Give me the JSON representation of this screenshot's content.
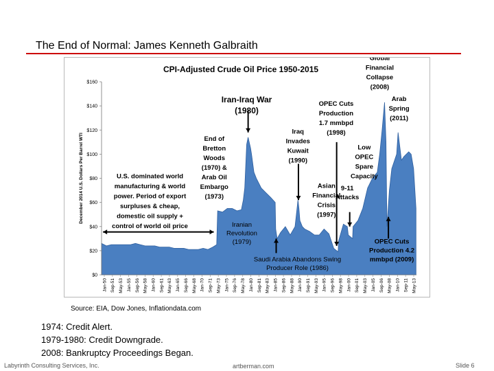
{
  "slide": {
    "title": "The End of Normal:  James Kenneth Galbraith",
    "source": "Source:  EIA, Dow Jones, Inflationdata.com",
    "notes": [
      "1974:  Credit Alert.",
      "1979-1980:  Credit Downgrade.",
      "2008:  Bankruptcy Proceedings Began."
    ],
    "footer": {
      "left": "Labyrinth Consulting Services, Inc.",
      "center": "artberman.com",
      "right": "Slide 6"
    }
  },
  "colors": {
    "rule": "#cc0000",
    "area": "#4a7fc1",
    "area_edge": "#2f5f9e"
  },
  "chart_data": {
    "type": "area",
    "title": "CPI-Adjusted Crude Oil Price 1950-2015",
    "ylabel": "December 2014 U.S. Dollars Per Barrel WTI",
    "xlabel": "",
    "ylim": [
      0,
      160
    ],
    "yticks": [
      "$0",
      "$20",
      "$40",
      "$60",
      "$80",
      "$100",
      "$120",
      "$140",
      "$160"
    ],
    "xticks": [
      "Jan-50",
      "Sep-51",
      "May-53",
      "Jan-55",
      "Sep-56",
      "May-58",
      "Jan-60",
      "Sep-61",
      "May-63",
      "Jan-65",
      "Sep-66",
      "May-68",
      "Jan-70",
      "Sep-71",
      "May-73",
      "Jan-75",
      "Sep-76",
      "May-78",
      "Jan-80",
      "Sep-81",
      "May-83",
      "Jan-85",
      "Sep-86",
      "May-88",
      "Jan-90",
      "Sep-91",
      "May-93",
      "Jan-95",
      "Sep-96",
      "May-98",
      "Jan-00",
      "Sep-01",
      "May-03",
      "Jan-05",
      "Sep-06",
      "May-08",
      "Jan-10",
      "Sep-11",
      "May-13"
    ],
    "x": [
      1950,
      1951,
      1952,
      1953,
      1954,
      1955,
      1956,
      1957,
      1958,
      1959,
      1960,
      1961,
      1962,
      1963,
      1964,
      1965,
      1966,
      1967,
      1968,
      1969,
      1970,
      1971,
      1972,
      1973,
      1973.8,
      1974,
      1975,
      1976,
      1977,
      1978,
      1978.9,
      1979.3,
      1979.6,
      1980,
      1980.3,
      1980.8,
      1981,
      1981.5,
      1982,
      1983,
      1984,
      1985,
      1985.9,
      1986,
      1986.3,
      1987,
      1988,
      1989,
      1990,
      1990.6,
      1990.8,
      1991,
      1991.5,
      1992,
      1993,
      1994,
      1995,
      1996,
      1997,
      1998,
      1998.9,
      1999,
      2000,
      2000.8,
      2001,
      2001.9,
      2002,
      2003,
      2004,
      2005,
      2006,
      2007,
      2007.5,
      2008,
      2008.5,
      2008.8,
      2008.95,
      2009,
      2009.5,
      2010,
      2011,
      2011.3,
      2012,
      2012.5,
      2013,
      2013.5,
      2014,
      2014.5,
      2015
    ],
    "y": [
      26,
      24,
      25,
      25,
      25,
      25,
      25,
      26,
      25,
      24,
      24,
      24,
      23,
      23,
      23,
      22,
      22,
      22,
      21,
      21,
      21,
      22,
      21,
      23,
      25,
      53,
      52,
      55,
      55,
      53,
      54,
      62,
      72,
      108,
      114,
      105,
      100,
      85,
      80,
      72,
      68,
      64,
      60,
      38,
      30,
      35,
      40,
      33,
      40,
      62,
      55,
      45,
      40,
      38,
      36,
      33,
      33,
      38,
      34,
      22,
      19,
      28,
      42,
      40,
      33,
      30,
      40,
      45,
      55,
      72,
      80,
      85,
      100,
      120,
      143,
      110,
      58,
      40,
      70,
      88,
      100,
      118,
      95,
      98,
      100,
      102,
      100,
      88,
      55
    ],
    "series": [
      {
        "name": "WTI (December 2014 U.S. Dollars Per Barrel)"
      }
    ],
    "annotations": [
      {
        "id": "us_dominated",
        "lines": [
          "U.S. dominated world",
          "manufacturing & world",
          "power.  Period of export",
          "surpluses & cheap,",
          "domestic oil supply +",
          "control of world oil price"
        ],
        "x": 1960,
        "y": 80
      },
      {
        "id": "bretton",
        "lines": [
          "End of",
          "Bretton",
          "Woods",
          "(1970) &",
          "Arab Oil",
          "Embargo",
          "(1973)"
        ],
        "x": 1973.3,
        "y": 111
      },
      {
        "id": "iranian",
        "lines": [
          "Iranian",
          "Revolution",
          "(1979)"
        ],
        "x": 1979,
        "y": 40
      },
      {
        "id": "iran_iraq",
        "lines": [
          "Iran-Iraq War",
          "(1980)"
        ],
        "x": 1980,
        "y": 143
      },
      {
        "id": "saudi",
        "lines": [
          "Saudi Arabia Abandons Swing",
          "Producer Role (1986)"
        ],
        "x": 1990.5,
        "y": 11
      },
      {
        "id": "iraq_kuwait",
        "lines": [
          "Iraq",
          "Invades",
          "Kuwait",
          "(1990)"
        ],
        "x": 1990.6,
        "y": 117
      },
      {
        "id": "asian",
        "lines": [
          "Asian",
          "Financial",
          "Crisis",
          "(1997)"
        ],
        "x": 1996.5,
        "y": 72
      },
      {
        "id": "opec1998",
        "lines": [
          "OPEC Cuts",
          "Production",
          "1.7 mmbpd",
          "(1998)"
        ],
        "x": 1998.5,
        "y": 140
      },
      {
        "id": "nine_eleven",
        "lines": [
          "9-11",
          "Attacks"
        ],
        "x": 2000.8,
        "y": 70
      },
      {
        "id": "low_opec",
        "lines": [
          "Low",
          "OPEC",
          "Spare",
          "Capacity"
        ],
        "x": 2004.3,
        "y": 104
      },
      {
        "id": "global",
        "lines": [
          "Global",
          "Financial",
          "Collapse",
          "(2008)"
        ],
        "x": 2007.5,
        "y": 178
      },
      {
        "id": "arab",
        "lines": [
          "Arab",
          "Spring",
          "(2011)"
        ],
        "x": 2011.5,
        "y": 144
      },
      {
        "id": "opec2009",
        "lines": [
          "OPEC Cuts",
          "Production  4.2",
          "mmbpd (2009)"
        ],
        "x": 2010,
        "y": 26
      }
    ]
  }
}
